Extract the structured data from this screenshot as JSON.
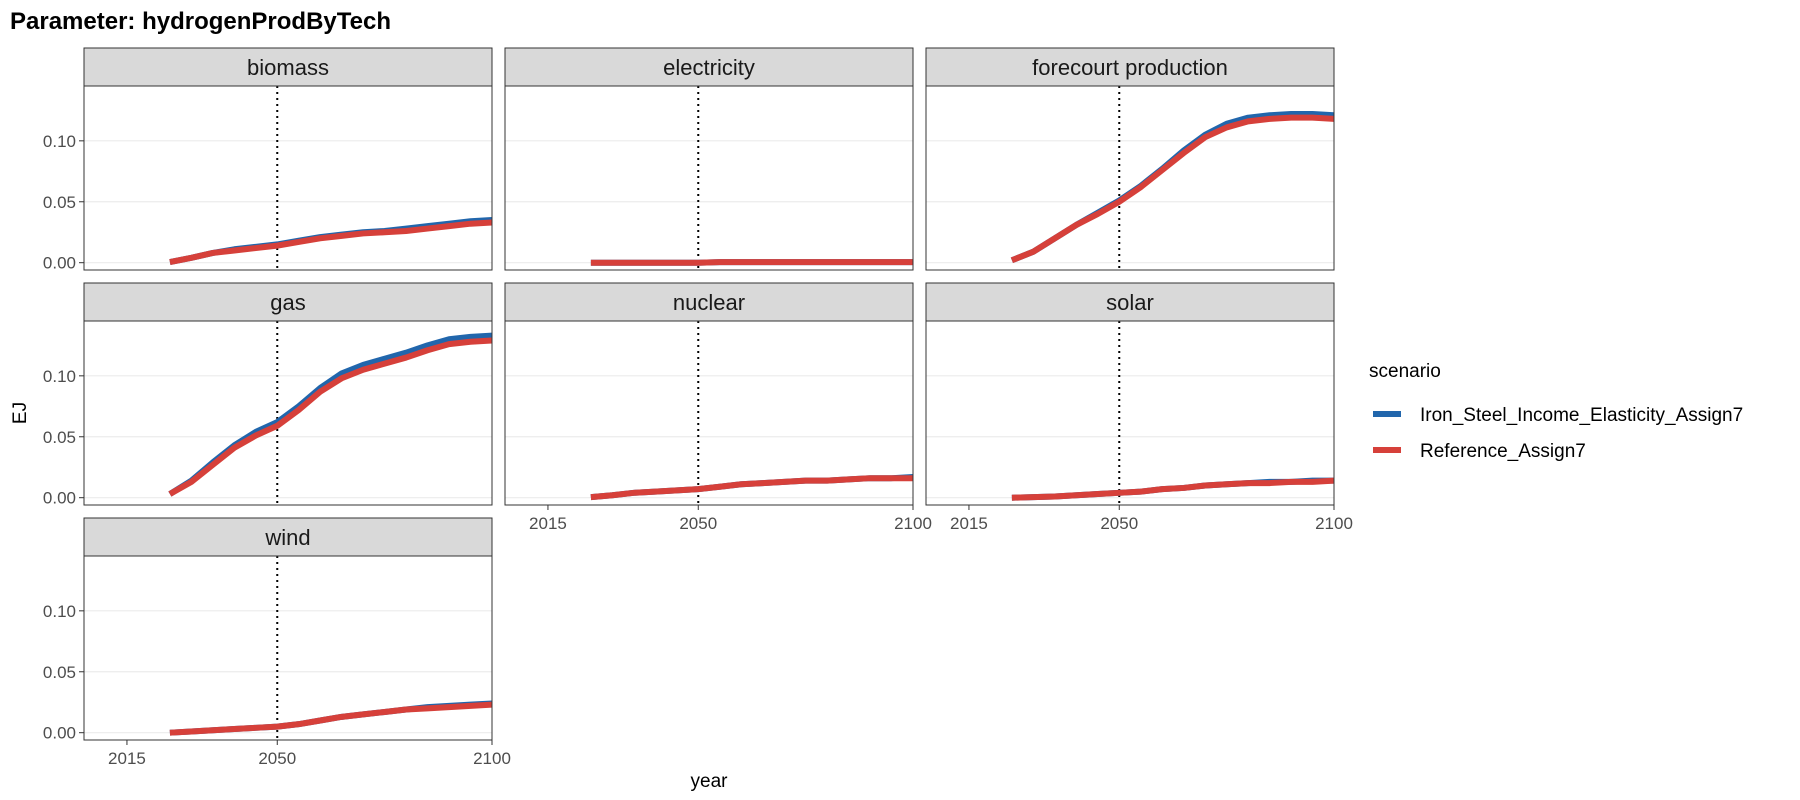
{
  "chart_data": {
    "type": "line",
    "title": "Parameter: hydrogenProdByTech",
    "xlabel": "year",
    "ylabel": "EJ",
    "xlim": [
      2005,
      2100
    ],
    "ylim": [
      -0.006,
      0.145
    ],
    "x_ticks": [
      2015,
      2050,
      2100
    ],
    "x_tick_labels": [
      "2015",
      "2050",
      "2100"
    ],
    "y_ticks": [
      0.0,
      0.05,
      0.1
    ],
    "y_tick_labels": [
      "0.00",
      "0.05",
      "0.10"
    ],
    "reference_line_x": 2050,
    "grid": true,
    "legend": {
      "title": "scenario",
      "placement": "right",
      "entries": [
        {
          "name": "Iron_Steel_Income_Elasticity_Assign7",
          "color": "#2166ac"
        },
        {
          "name": "Reference_Assign7",
          "color": "#d6403a"
        }
      ]
    },
    "x": [
      2025,
      2030,
      2035,
      2040,
      2045,
      2050,
      2055,
      2060,
      2065,
      2070,
      2075,
      2080,
      2085,
      2090,
      2095,
      2100
    ],
    "facets": [
      {
        "label": "biomass",
        "series": [
          {
            "name": "Iron_Steel_Income_Elasticity_Assign7",
            "values": [
              0.0005,
              0.004,
              0.008,
              0.011,
              0.013,
              0.015,
              0.018,
              0.021,
              0.023,
              0.025,
              0.026,
              0.028,
              0.03,
              0.032,
              0.034,
              0.035
            ]
          },
          {
            "name": "Reference_Assign7",
            "values": [
              0.0005,
              0.004,
              0.008,
              0.01,
              0.012,
              0.014,
              0.017,
              0.02,
              0.022,
              0.024,
              0.025,
              0.026,
              0.028,
              0.03,
              0.032,
              0.033
            ]
          }
        ]
      },
      {
        "label": "electricity",
        "series": [
          {
            "name": "Iron_Steel_Income_Elasticity_Assign7",
            "values": [
              0.0,
              0.0,
              0.0,
              0.0,
              0.0,
              0.0,
              0.0005,
              0.0005,
              0.0005,
              0.0005,
              0.0005,
              0.0005,
              0.0005,
              0.0005,
              0.0005,
              0.0005
            ]
          },
          {
            "name": "Reference_Assign7",
            "values": [
              0.0,
              0.0,
              0.0,
              0.0,
              0.0,
              0.0,
              0.0005,
              0.0005,
              0.0005,
              0.0005,
              0.0005,
              0.0005,
              0.0005,
              0.0005,
              0.0005,
              0.0005
            ]
          }
        ]
      },
      {
        "label": "forecourt production",
        "series": [
          {
            "name": "Iron_Steel_Income_Elasticity_Assign7",
            "values": [
              0.002,
              0.009,
              0.02,
              0.031,
              0.041,
              0.051,
              0.063,
              0.077,
              0.092,
              0.105,
              0.114,
              0.119,
              0.121,
              0.122,
              0.122,
              0.121
            ]
          },
          {
            "name": "Reference_Assign7",
            "values": [
              0.002,
              0.009,
              0.02,
              0.031,
              0.04,
              0.05,
              0.062,
              0.076,
              0.09,
              0.103,
              0.111,
              0.116,
              0.118,
              0.119,
              0.119,
              0.118
            ]
          }
        ]
      },
      {
        "label": "gas",
        "series": [
          {
            "name": "Iron_Steel_Income_Elasticity_Assign7",
            "values": [
              0.003,
              0.014,
              0.029,
              0.043,
              0.054,
              0.062,
              0.075,
              0.09,
              0.102,
              0.109,
              0.114,
              0.119,
              0.125,
              0.13,
              0.132,
              0.133
            ]
          },
          {
            "name": "Reference_Assign7",
            "values": [
              0.003,
              0.013,
              0.027,
              0.041,
              0.051,
              0.059,
              0.072,
              0.087,
              0.098,
              0.105,
              0.11,
              0.115,
              0.121,
              0.126,
              0.128,
              0.129
            ]
          }
        ]
      },
      {
        "label": "nuclear",
        "series": [
          {
            "name": "Iron_Steel_Income_Elasticity_Assign7",
            "values": [
              0.0005,
              0.002,
              0.004,
              0.005,
              0.006,
              0.007,
              0.009,
              0.011,
              0.012,
              0.013,
              0.014,
              0.014,
              0.015,
              0.016,
              0.016,
              0.017
            ]
          },
          {
            "name": "Reference_Assign7",
            "values": [
              0.0005,
              0.002,
              0.004,
              0.005,
              0.006,
              0.007,
              0.009,
              0.011,
              0.012,
              0.013,
              0.014,
              0.014,
              0.015,
              0.016,
              0.016,
              0.016
            ]
          }
        ]
      },
      {
        "label": "solar",
        "series": [
          {
            "name": "Iron_Steel_Income_Elasticity_Assign7",
            "values": [
              0.0,
              0.0005,
              0.001,
              0.002,
              0.003,
              0.004,
              0.005,
              0.007,
              0.008,
              0.01,
              0.011,
              0.012,
              0.013,
              0.013,
              0.014,
              0.014
            ]
          },
          {
            "name": "Reference_Assign7",
            "values": [
              0.0,
              0.0005,
              0.001,
              0.002,
              0.003,
              0.004,
              0.005,
              0.007,
              0.008,
              0.01,
              0.011,
              0.012,
              0.012,
              0.013,
              0.013,
              0.014
            ]
          }
        ]
      },
      {
        "label": "wind",
        "series": [
          {
            "name": "Iron_Steel_Income_Elasticity_Assign7",
            "values": [
              0.0,
              0.001,
              0.002,
              0.003,
              0.004,
              0.005,
              0.007,
              0.01,
              0.013,
              0.015,
              0.017,
              0.019,
              0.021,
              0.022,
              0.023,
              0.024
            ]
          },
          {
            "name": "Reference_Assign7",
            "values": [
              0.0,
              0.001,
              0.002,
              0.003,
              0.004,
              0.005,
              0.007,
              0.01,
              0.013,
              0.015,
              0.017,
              0.019,
              0.02,
              0.021,
              0.022,
              0.023
            ]
          }
        ]
      }
    ]
  }
}
